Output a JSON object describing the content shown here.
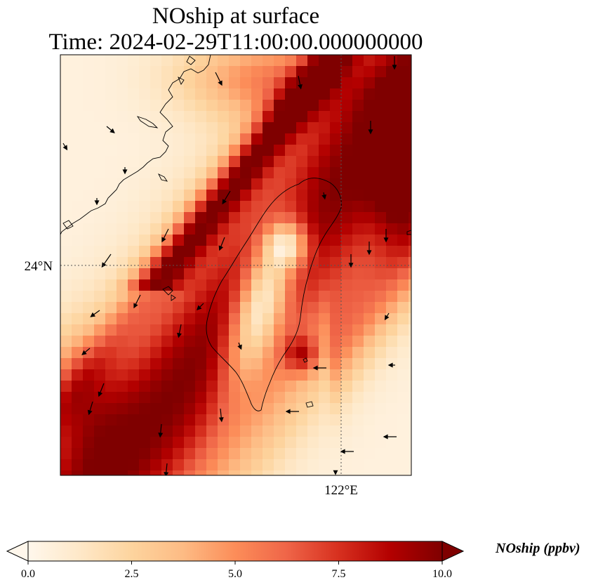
{
  "map": {
    "title_line1": "NOship at surface",
    "title_line2": "Time: 2024-02-29T11:00:00.000000000",
    "lat_label": "24°N",
    "lon_label": "122°E",
    "variable": "NOship",
    "colormap": "OrRd",
    "grid_style": "dotted"
  },
  "colorbar": {
    "label": "NOship (ppbv)",
    "min": 0.0,
    "max": 10.0,
    "ticks": [
      "0.0",
      "2.5",
      "5.0",
      "7.5",
      "10.0"
    ],
    "extend": "both",
    "colors": [
      "#fff7ec",
      "#fee8c8",
      "#fdd49e",
      "#fdbb84",
      "#fc8d59",
      "#ef6548",
      "#d7301f",
      "#b30000",
      "#7f0000"
    ]
  }
}
